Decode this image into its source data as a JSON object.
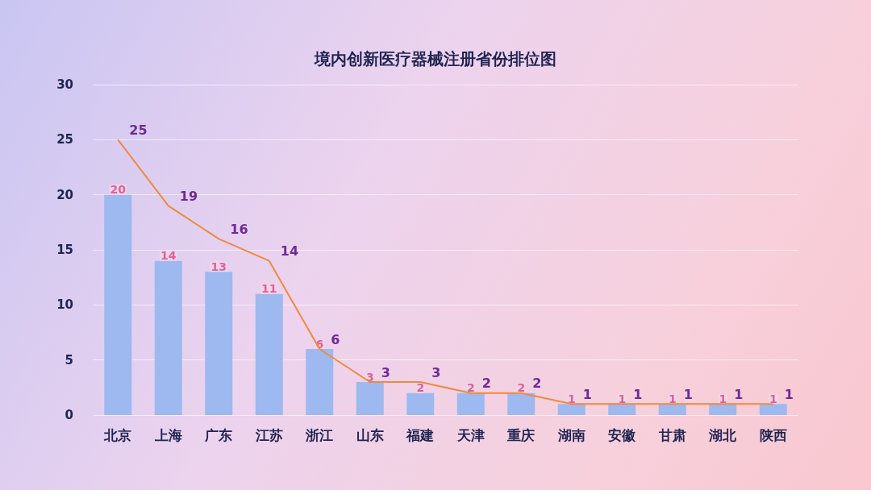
{
  "chart_data": {
    "type": "bar",
    "title": "境内创新医疗器械注册省份排位图",
    "categories": [
      "北京",
      "上海",
      "广东",
      "江苏",
      "浙江",
      "山东",
      "福建",
      "天津",
      "重庆",
      "湖南",
      "安徽",
      "甘肃",
      "湖北",
      "陕西"
    ],
    "series": [
      {
        "color": "#9db9ef",
        "values": [
          20,
          14,
          13,
          11,
          6,
          3,
          2,
          2,
          2,
          1,
          1,
          1,
          1,
          1
        ]
      },
      {
        "type": "line",
        "color": "#ef8a3d",
        "values": [
          25,
          19,
          16,
          14,
          6,
          3,
          3,
          2,
          2,
          1,
          1,
          1,
          1,
          1
        ]
      }
    ],
    "ylim": [
      0,
      30
    ],
    "yticks": [
      0,
      5,
      10,
      15,
      20,
      25,
      30
    ],
    "grid": "y",
    "data_labels": true,
    "marker": "none"
  }
}
